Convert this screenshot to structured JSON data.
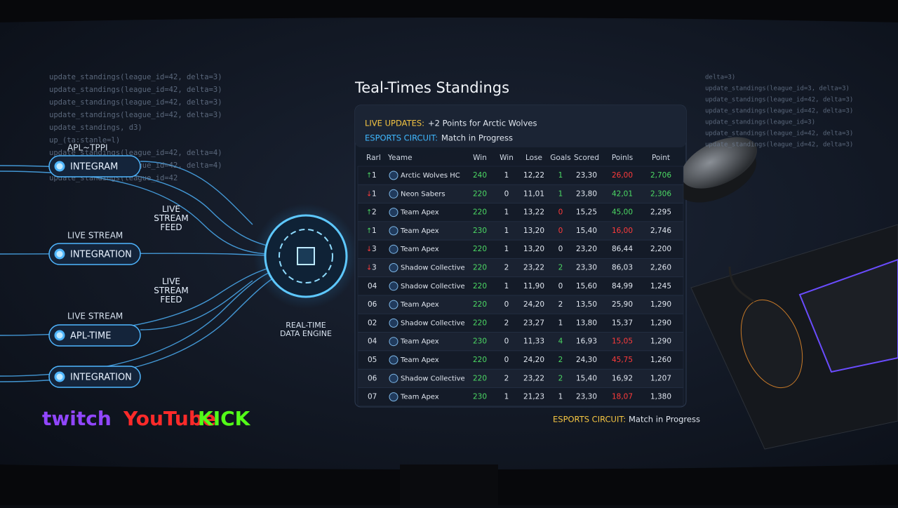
{
  "code_left": [
    "update_standings(league_id=42, delta=3)",
    "update_standings(league_id=42, delta=3)",
    "update_standings(league_id=42, delta=3)",
    "update_standings(league_id=42, delta=3)",
    "update_standings, d3)",
    "up_(ta:stanle=l)",
    "update_standings(league_id=42, delta=4)",
    "update_standings(league_id=42, delta=4)",
    "update_standings(league_id=42"
  ],
  "code_right": [
    "delta=3)",
    "update_standings(league_id=3, delta=3)",
    "update_standings(league_id=42, delta=3)",
    "update_standings(league_id=42, delta=3)",
    "update_standings(league_id=3)",
    "update_standings(league_id=42, delta=3)",
    "update_standings(league_id=42, delta=3)"
  ],
  "pipeline": {
    "inputs": [
      "INTEGRAM",
      "INTEGRATION",
      "APL-TIME",
      "INTEGRATION"
    ],
    "labels": [
      "APL~TPPI",
      "LIVE STREAM",
      "LIVE STREAM"
    ],
    "feeds": [
      "LIVE\nSTREAM\nFEED",
      "LIVE\nSTREAM\nFEED"
    ],
    "engine": "REAL-TIME\nDATA ENGINE"
  },
  "logos": [
    {
      "text": "twitch",
      "color": "#9146ff"
    },
    {
      "text": "YouTube",
      "color": "#ff2a2a"
    },
    {
      "text": "KICK",
      "color": "#53fc18"
    }
  ],
  "title": "Teal-Times Standings",
  "banner": [
    {
      "label": "LIVE UPDATES:",
      "text": "+2 Points for Arctic Wolves",
      "color": "#f5c542"
    },
    {
      "label": "ESPORTS CIRCUIT:",
      "text": "Match in Progress",
      "color": "#3fb8ff"
    }
  ],
  "table": {
    "columns": [
      "Rarl",
      "Yeame",
      "Win",
      "Win",
      "Lose",
      "Goals",
      "Scored",
      "Poinls",
      "Point"
    ],
    "rows": [
      {
        "trend": "up",
        "rank": "1",
        "team": "Arctic Wolves HC",
        "cells": [
          "240",
          "1",
          "12,22",
          "1",
          "23,30",
          "26,00",
          "2,706"
        ],
        "colors": [
          "#4cd964",
          null,
          null,
          "#4cd964",
          null,
          "#ff3b3b",
          "#4cd964"
        ]
      },
      {
        "trend": "down",
        "rank": "1",
        "team": "Neon Sabers",
        "cells": [
          "220",
          "0",
          "11,01",
          "1",
          "23,80",
          "42,01",
          "2,306"
        ],
        "colors": [
          "#4cd964",
          null,
          null,
          "#4cd964",
          null,
          "#4cd964",
          "#4cd964"
        ]
      },
      {
        "trend": "up",
        "rank": "2",
        "team": "Team Apex",
        "cells": [
          "220",
          "1",
          "13,22",
          "0",
          "15,25",
          "45,00",
          "2,295"
        ],
        "colors": [
          "#4cd964",
          null,
          null,
          "#ff3b3b",
          null,
          "#4cd964",
          null
        ]
      },
      {
        "trend": "up",
        "rank": "1",
        "team": "Team Apex",
        "cells": [
          "230",
          "1",
          "13,20",
          "0",
          "15,40",
          "16,00",
          "2,746"
        ],
        "colors": [
          "#4cd964",
          null,
          null,
          "#ff3b3b",
          null,
          "#ff3b3b",
          null
        ]
      },
      {
        "trend": "down",
        "rank": "3",
        "team": "Team Apex",
        "cells": [
          "220",
          "1",
          "13,20",
          "0",
          "23,20",
          "86,44",
          "2,200"
        ],
        "colors": [
          "#4cd964",
          null,
          null,
          null,
          null,
          null,
          null
        ]
      },
      {
        "trend": "down",
        "rank": "3",
        "team": "Shadow Collective",
        "cells": [
          "220",
          "2",
          "23,22",
          "2",
          "23,30",
          "86,03",
          "2,260"
        ],
        "colors": [
          "#4cd964",
          null,
          null,
          "#4cd964",
          null,
          null,
          null
        ]
      },
      {
        "rank": "04",
        "team": "Shadow Collective",
        "cells": [
          "220",
          "1",
          "11,90",
          "0",
          "15,60",
          "84,99",
          "1,245"
        ],
        "colors": [
          "#4cd964",
          null,
          null,
          null,
          null,
          null,
          null
        ]
      },
      {
        "rank": "06",
        "team": "Team Apex",
        "cells": [
          "220",
          "0",
          "24,20",
          "2",
          "13,50",
          "25,90",
          "1,290"
        ],
        "colors": [
          "#4cd964",
          null,
          null,
          null,
          null,
          null,
          null
        ]
      },
      {
        "rank": "02",
        "team": "Shadow Collective",
        "cells": [
          "220",
          "2",
          "23,27",
          "1",
          "13,80",
          "15,37",
          "1,290"
        ],
        "colors": [
          "#4cd964",
          null,
          null,
          null,
          null,
          null,
          null
        ]
      },
      {
        "rank": "04",
        "team": "Team Apex",
        "cells": [
          "230",
          "0",
          "11,33",
          "4",
          "16,93",
          "15,05",
          "1,290"
        ],
        "colors": [
          "#4cd964",
          null,
          null,
          "#4cd964",
          null,
          "#ff3b3b",
          null
        ]
      },
      {
        "rank": "05",
        "team": "Team Apex",
        "cells": [
          "220",
          "0",
          "24,20",
          "2",
          "24,30",
          "45,75",
          "1,260"
        ],
        "colors": [
          "#4cd964",
          null,
          null,
          "#4cd964",
          null,
          "#ff3b3b",
          null
        ]
      },
      {
        "rank": "06",
        "team": "Shadow Collective",
        "cells": [
          "220",
          "2",
          "23,22",
          "2",
          "15,40",
          "16,92",
          "1,207"
        ],
        "colors": [
          "#4cd964",
          null,
          null,
          "#4cd964",
          null,
          null,
          null
        ]
      },
      {
        "rank": "07",
        "team": "Team Apex",
        "cells": [
          "230",
          "1",
          "21,23",
          "1",
          "23,30",
          "18,07",
          "1,380"
        ],
        "colors": [
          "#4cd964",
          null,
          null,
          null,
          null,
          "#ff3b3b",
          null
        ]
      }
    ]
  },
  "footer": {
    "label": "ESPORTS CIRCUIT:",
    "text": "Match in Progress"
  }
}
